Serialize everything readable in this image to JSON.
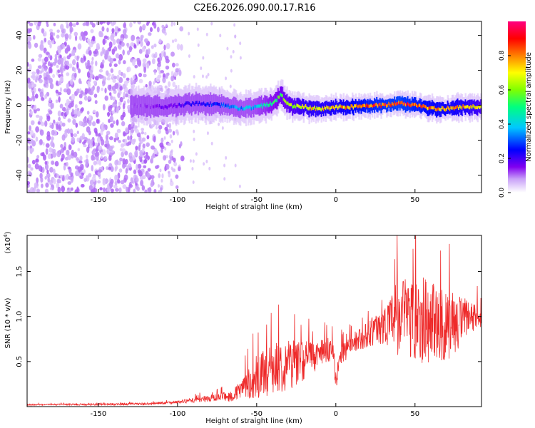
{
  "figure_title": "C2E6.2026.090.00.17.R16",
  "chart_data": [
    {
      "type": "heatmap",
      "title": "C2E6.2026.090.00.17.R16",
      "xlabel": "Height of straight line (km)",
      "ylabel": "Frequency (Hz)",
      "xlim": [
        -195,
        92
      ],
      "ylim": [
        -50,
        48
      ],
      "xticks": [
        -150,
        -100,
        -50,
        0,
        50
      ],
      "xtick_labels": [
        "-150",
        "-100",
        "-50",
        "0",
        "50"
      ],
      "yticks": [
        -40,
        -20,
        0,
        20,
        40
      ],
      "ytick_labels": [
        "-40",
        "-20",
        "0",
        "20",
        "40"
      ],
      "ridge": {
        "description": "Strong narrow ridge near 0 Hz",
        "x_start": -130,
        "x_end": 92,
        "y_center_points": [
          [
            -130,
            0
          ],
          [
            -110,
            -1
          ],
          [
            -90,
            1
          ],
          [
            -70,
            0
          ],
          [
            -60,
            -2
          ],
          [
            -50,
            -1
          ],
          [
            -40,
            1
          ],
          [
            -35,
            6
          ],
          [
            -30,
            0
          ],
          [
            -20,
            -1
          ],
          [
            -10,
            -2
          ],
          [
            0,
            -1
          ],
          [
            10,
            -1
          ],
          [
            20,
            0
          ],
          [
            30,
            0
          ],
          [
            40,
            1
          ],
          [
            50,
            0
          ],
          [
            60,
            -2
          ],
          [
            70,
            -2
          ],
          [
            80,
            -1
          ],
          [
            92,
            -1
          ]
        ],
        "amplitude_points": [
          [
            -130,
            0.15
          ],
          [
            -100,
            0.25
          ],
          [
            -70,
            0.35
          ],
          [
            -50,
            0.45
          ],
          [
            -35,
            0.6
          ],
          [
            -20,
            0.75
          ],
          [
            0,
            0.8
          ],
          [
            20,
            0.9
          ],
          [
            40,
            0.95
          ],
          [
            60,
            0.85
          ],
          [
            80,
            0.8
          ],
          [
            92,
            0.7
          ]
        ]
      },
      "noise_region": {
        "x_range": [
          -195,
          -115
        ],
        "amplitude_range": [
          0.05,
          0.15
        ]
      },
      "colorbar": {
        "label": "Normalized spectral amplitude",
        "range": [
          0.0,
          1.0
        ],
        "ticks": [
          0.0,
          0.2,
          0.4,
          0.6,
          0.8
        ],
        "tick_labels": [
          "0.0",
          "0.2",
          "0.4",
          "0.6",
          "0.8"
        ],
        "colors": [
          "#ffffff",
          "#c8a0f8",
          "#8000f0",
          "#0000ff",
          "#00c8ff",
          "#00ff80",
          "#80ff00",
          "#ffff00",
          "#ff8000",
          "#ff0000",
          "#ff0080"
        ]
      }
    },
    {
      "type": "line",
      "xlabel": "Height of straight line (km)",
      "ylabel": "SNR (10 * v/v)",
      "y_multiplier_label": "(x10",
      "y_multiplier_exp": "4",
      "xlim": [
        -195,
        92
      ],
      "ylim": [
        0,
        1.9
      ],
      "xticks": [
        -150,
        -100,
        -50,
        0,
        50
      ],
      "xtick_labels": [
        "-150",
        "-100",
        "-50",
        "0",
        "50"
      ],
      "yticks": [
        0.5,
        1.0,
        1.5
      ],
      "ytick_labels": [
        "0.5",
        "1.0",
        "1.5"
      ],
      "color": "#ee2a2a",
      "series": [
        {
          "name": "SNR",
          "baseline_points": [
            [
              -195,
              0.02
            ],
            [
              -150,
              0.025
            ],
            [
              -120,
              0.03
            ],
            [
              -100,
              0.05
            ],
            [
              -80,
              0.09
            ],
            [
              -65,
              0.12
            ],
            [
              -58,
              0.22
            ],
            [
              -50,
              0.32
            ],
            [
              -40,
              0.42
            ],
            [
              -30,
              0.48
            ],
            [
              -20,
              0.52
            ],
            [
              -10,
              0.58
            ],
            [
              -2,
              0.65
            ],
            [
              0,
              0.3
            ],
            [
              3,
              0.55
            ],
            [
              10,
              0.7
            ],
            [
              20,
              0.8
            ],
            [
              30,
              0.9
            ],
            [
              40,
              1.0
            ],
            [
              50,
              1.0
            ],
            [
              60,
              0.95
            ],
            [
              70,
              0.9
            ],
            [
              80,
              0.95
            ],
            [
              92,
              1.0
            ]
          ],
          "noise_points": [
            [
              -195,
              0.008
            ],
            [
              -100,
              0.015
            ],
            [
              -70,
              0.05
            ],
            [
              -60,
              0.1
            ],
            [
              -50,
              0.25
            ],
            [
              -30,
              0.3
            ],
            [
              -10,
              0.15
            ],
            [
              10,
              0.1
            ],
            [
              30,
              0.2
            ],
            [
              40,
              0.45
            ],
            [
              55,
              0.5
            ],
            [
              70,
              0.4
            ],
            [
              92,
              0.12
            ]
          ]
        }
      ]
    }
  ]
}
